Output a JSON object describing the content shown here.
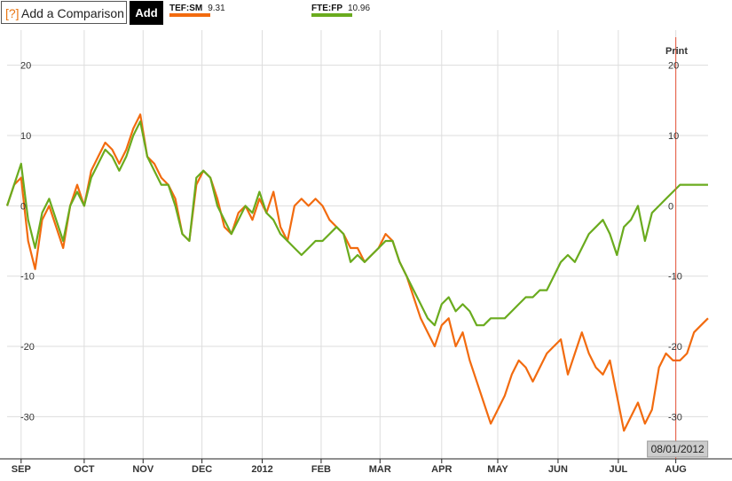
{
  "toolbar": {
    "help_glyph": "[?]",
    "compare_placeholder": "Add a Comparison",
    "add_label": "Add"
  },
  "legend": [
    {
      "ticker": "TEF:SM",
      "value": "9.31",
      "color": "#f26b0f"
    },
    {
      "ticker": "FTE:FP",
      "value": "10.96",
      "color": "#6aab1e"
    }
  ],
  "print_label": "Print",
  "crosshair_date": "08/01/2012",
  "chart_data": {
    "type": "line",
    "yticks": [
      20,
      10,
      0,
      -10,
      -20,
      -30
    ],
    "ytick_labels": [
      "20",
      "10",
      "0",
      "-10",
      "-20",
      "-30"
    ],
    "ylim": [
      -36,
      25
    ],
    "xlim": [
      0,
      50
    ],
    "xtick_labels": [
      "SEP",
      "OCT",
      "NOV",
      "DEC",
      "2012",
      "FEB",
      "MAR",
      "APR",
      "MAY",
      "JUN",
      "JUL",
      "AUG"
    ],
    "xtick_positions": [
      1.0,
      5.5,
      9.7,
      13.9,
      18.2,
      22.4,
      26.6,
      31.0,
      35.0,
      39.3,
      43.6,
      47.7
    ],
    "grid": true,
    "crosshair_x": 47.7,
    "series": [
      {
        "name": "TEF:SM",
        "color": "#f26b0f",
        "x": [
          0,
          0.5,
          1,
          1.5,
          2,
          2.5,
          3,
          3.5,
          4,
          4.5,
          5,
          5.5,
          6,
          6.5,
          7,
          7.5,
          8,
          8.5,
          9,
          9.5,
          10,
          10.5,
          11,
          11.5,
          12,
          12.5,
          13,
          13.5,
          14,
          14.5,
          15,
          15.5,
          16,
          16.5,
          17,
          17.5,
          18,
          18.5,
          19,
          19.5,
          20,
          20.5,
          21,
          21.5,
          22,
          22.5,
          23,
          23.5,
          24,
          24.5,
          25,
          25.5,
          26,
          26.5,
          27,
          27.5,
          28,
          28.5,
          29,
          29.5,
          30,
          30.5,
          31,
          31.5,
          32,
          32.5,
          33,
          33.5,
          34,
          34.5,
          35,
          35.5,
          36,
          36.5,
          37,
          37.5,
          38,
          38.5,
          39,
          39.5,
          40,
          40.5,
          41,
          41.5,
          42,
          42.5,
          43,
          43.5,
          44,
          44.5,
          45,
          45.5,
          46,
          46.5,
          47,
          47.5,
          48,
          48.5,
          49,
          49.5,
          50
        ],
        "values": [
          0,
          3,
          4,
          -5,
          -9,
          -2,
          0,
          -3,
          -6,
          0,
          3,
          0,
          5,
          7,
          9,
          8,
          6,
          8,
          11,
          13,
          7,
          6,
          4,
          3,
          1,
          -4,
          -5,
          3,
          5,
          4,
          1,
          -3,
          -4,
          -1,
          0,
          -2,
          1,
          -1,
          2,
          -3,
          -5,
          0,
          1,
          0,
          1,
          0,
          -2,
          -3,
          -4,
          -6,
          -6,
          -8,
          -7,
          -6,
          -4,
          -5,
          -8,
          -10,
          -13,
          -16,
          -18,
          -20,
          -17,
          -16,
          -20,
          -18,
          -22,
          -25,
          -28,
          -31,
          -29,
          -27,
          -24,
          -22,
          -23,
          -25,
          -23,
          -21,
          -20,
          -19,
          -24,
          -21,
          -18,
          -21,
          -23,
          -24,
          -22,
          -27,
          -32,
          -30,
          -28,
          -31,
          -29,
          -23,
          -21,
          -22,
          -22,
          -21,
          -18,
          -17,
          -16
        ]
      },
      {
        "name": "FTE:FP",
        "color": "#6aab1e",
        "x": [
          0,
          0.5,
          1,
          1.5,
          2,
          2.5,
          3,
          3.5,
          4,
          4.5,
          5,
          5.5,
          6,
          6.5,
          7,
          7.5,
          8,
          8.5,
          9,
          9.5,
          10,
          10.5,
          11,
          11.5,
          12,
          12.5,
          13,
          13.5,
          14,
          14.5,
          15,
          15.5,
          16,
          16.5,
          17,
          17.5,
          18,
          18.5,
          19,
          19.5,
          20,
          20.5,
          21,
          21.5,
          22,
          22.5,
          23,
          23.5,
          24,
          24.5,
          25,
          25.5,
          26,
          26.5,
          27,
          27.5,
          28,
          28.5,
          29,
          29.5,
          30,
          30.5,
          31,
          31.5,
          32,
          32.5,
          33,
          33.5,
          34,
          34.5,
          35,
          35.5,
          36,
          36.5,
          37,
          37.5,
          38,
          38.5,
          39,
          39.5,
          40,
          40.5,
          41,
          41.5,
          42,
          42.5,
          43,
          43.5,
          44,
          44.5,
          45,
          45.5,
          46,
          46.5,
          47,
          47.5,
          48,
          48.5,
          49,
          49.5,
          50
        ],
        "values": [
          0,
          3,
          6,
          -2,
          -6,
          -1,
          1,
          -2,
          -5,
          0,
          2,
          0,
          4,
          6,
          8,
          7,
          5,
          7,
          10,
          12,
          7,
          5,
          3,
          3,
          0,
          -4,
          -5,
          4,
          5,
          4,
          0,
          -2,
          -4,
          -2,
          0,
          -1,
          2,
          -1,
          -2,
          -4,
          -5,
          -6,
          -7,
          -6,
          -5,
          -5,
          -4,
          -3,
          -4,
          -8,
          -7,
          -8,
          -7,
          -6,
          -5,
          -5,
          -8,
          -10,
          -12,
          -14,
          -16,
          -17,
          -14,
          -13,
          -15,
          -14,
          -15,
          -17,
          -17,
          -16,
          -16,
          -16,
          -15,
          -14,
          -13,
          -13,
          -12,
          -12,
          -10,
          -8,
          -7,
          -8,
          -6,
          -4,
          -3,
          -2,
          -4,
          -7,
          -3,
          -2,
          0,
          -5,
          -1,
          0,
          1,
          2,
          3,
          3,
          3,
          3,
          3
        ]
      }
    ]
  }
}
